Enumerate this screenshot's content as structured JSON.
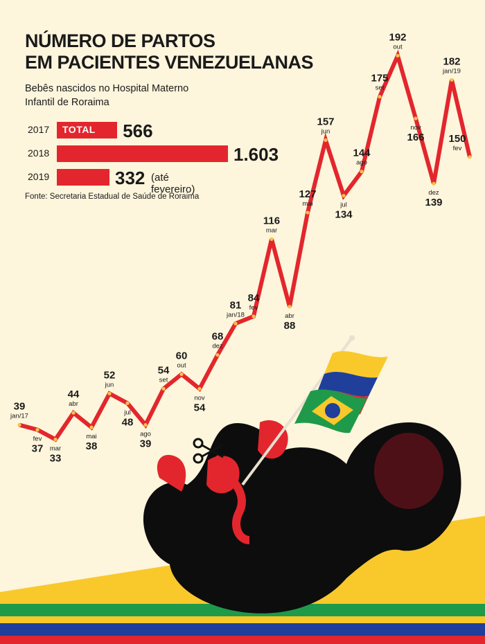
{
  "title_line1": "NÚMERO DE PARTOS",
  "title_line2": "EM PACIENTES VENEZUELANAS",
  "subtitle_line1": "Bebês nascidos no Hospital Materno",
  "subtitle_line2": "Infantil de Roraima",
  "totals": [
    {
      "year": "2017",
      "label": "TOTAL",
      "value": 566,
      "display": "566",
      "note": ""
    },
    {
      "year": "2018",
      "label": "",
      "value": 1603,
      "display": "1.603",
      "note": ""
    },
    {
      "year": "2019",
      "label": "",
      "value": 332,
      "display": "332",
      "note": "(até fevereiro)"
    }
  ],
  "source": "Fonte: Secretaria Estadual de Saúde de Roraima",
  "colors": {
    "line": "#e3262d",
    "bar": "#e3262d",
    "background": "#fdf5dc",
    "dots": "#f5c44a",
    "yellow": "#f9c82b",
    "green": "#1f9a4a",
    "blue": "#1f3f9a",
    "red": "#e3262d"
  },
  "chart_data": {
    "type": "line",
    "title": "NÚMERO DE PARTOS EM PACIENTES VENEZUELANAS",
    "points": [
      {
        "month": "jan/17",
        "value": 39
      },
      {
        "month": "fev",
        "value": 37
      },
      {
        "month": "mar",
        "value": 33
      },
      {
        "month": "abr",
        "value": 44
      },
      {
        "month": "mai",
        "value": 38
      },
      {
        "month": "jun",
        "value": 52
      },
      {
        "month": "jul",
        "value": 48
      },
      {
        "month": "ago",
        "value": 39
      },
      {
        "month": "set",
        "value": 54
      },
      {
        "month": "out",
        "value": 60
      },
      {
        "month": "nov",
        "value": 54
      },
      {
        "month": "dez",
        "value": 68
      },
      {
        "month": "jan/18",
        "value": 81
      },
      {
        "month": "fev",
        "value": 84
      },
      {
        "month": "mar",
        "value": 116
      },
      {
        "month": "abr",
        "value": 88
      },
      {
        "month": "mai",
        "value": 127
      },
      {
        "month": "jun",
        "value": 157
      },
      {
        "month": "jul",
        "value": 134
      },
      {
        "month": "ago",
        "value": 144
      },
      {
        "month": "set",
        "value": 175
      },
      {
        "month": "out",
        "value": 192
      },
      {
        "month": "nov",
        "value": 166
      },
      {
        "month": "dez",
        "value": 139
      },
      {
        "month": "jan/19",
        "value": 182
      },
      {
        "month": "fev",
        "value": 150
      }
    ],
    "ylim": [
      30,
      195
    ],
    "grid": false
  }
}
